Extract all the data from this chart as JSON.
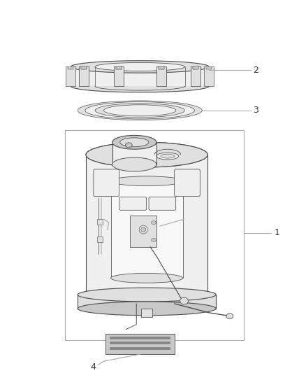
{
  "background_color": "#ffffff",
  "line_color": "#4a4a4a",
  "fill_light": "#f0f0f0",
  "fill_mid": "#e0e0e0",
  "fill_dark": "#c8c8c8",
  "fill_white": "#ffffff",
  "leader_color": "#aaaaaa",
  "label_color": "#333333",
  "figsize": [
    4.38,
    5.33
  ],
  "dpi": 100
}
